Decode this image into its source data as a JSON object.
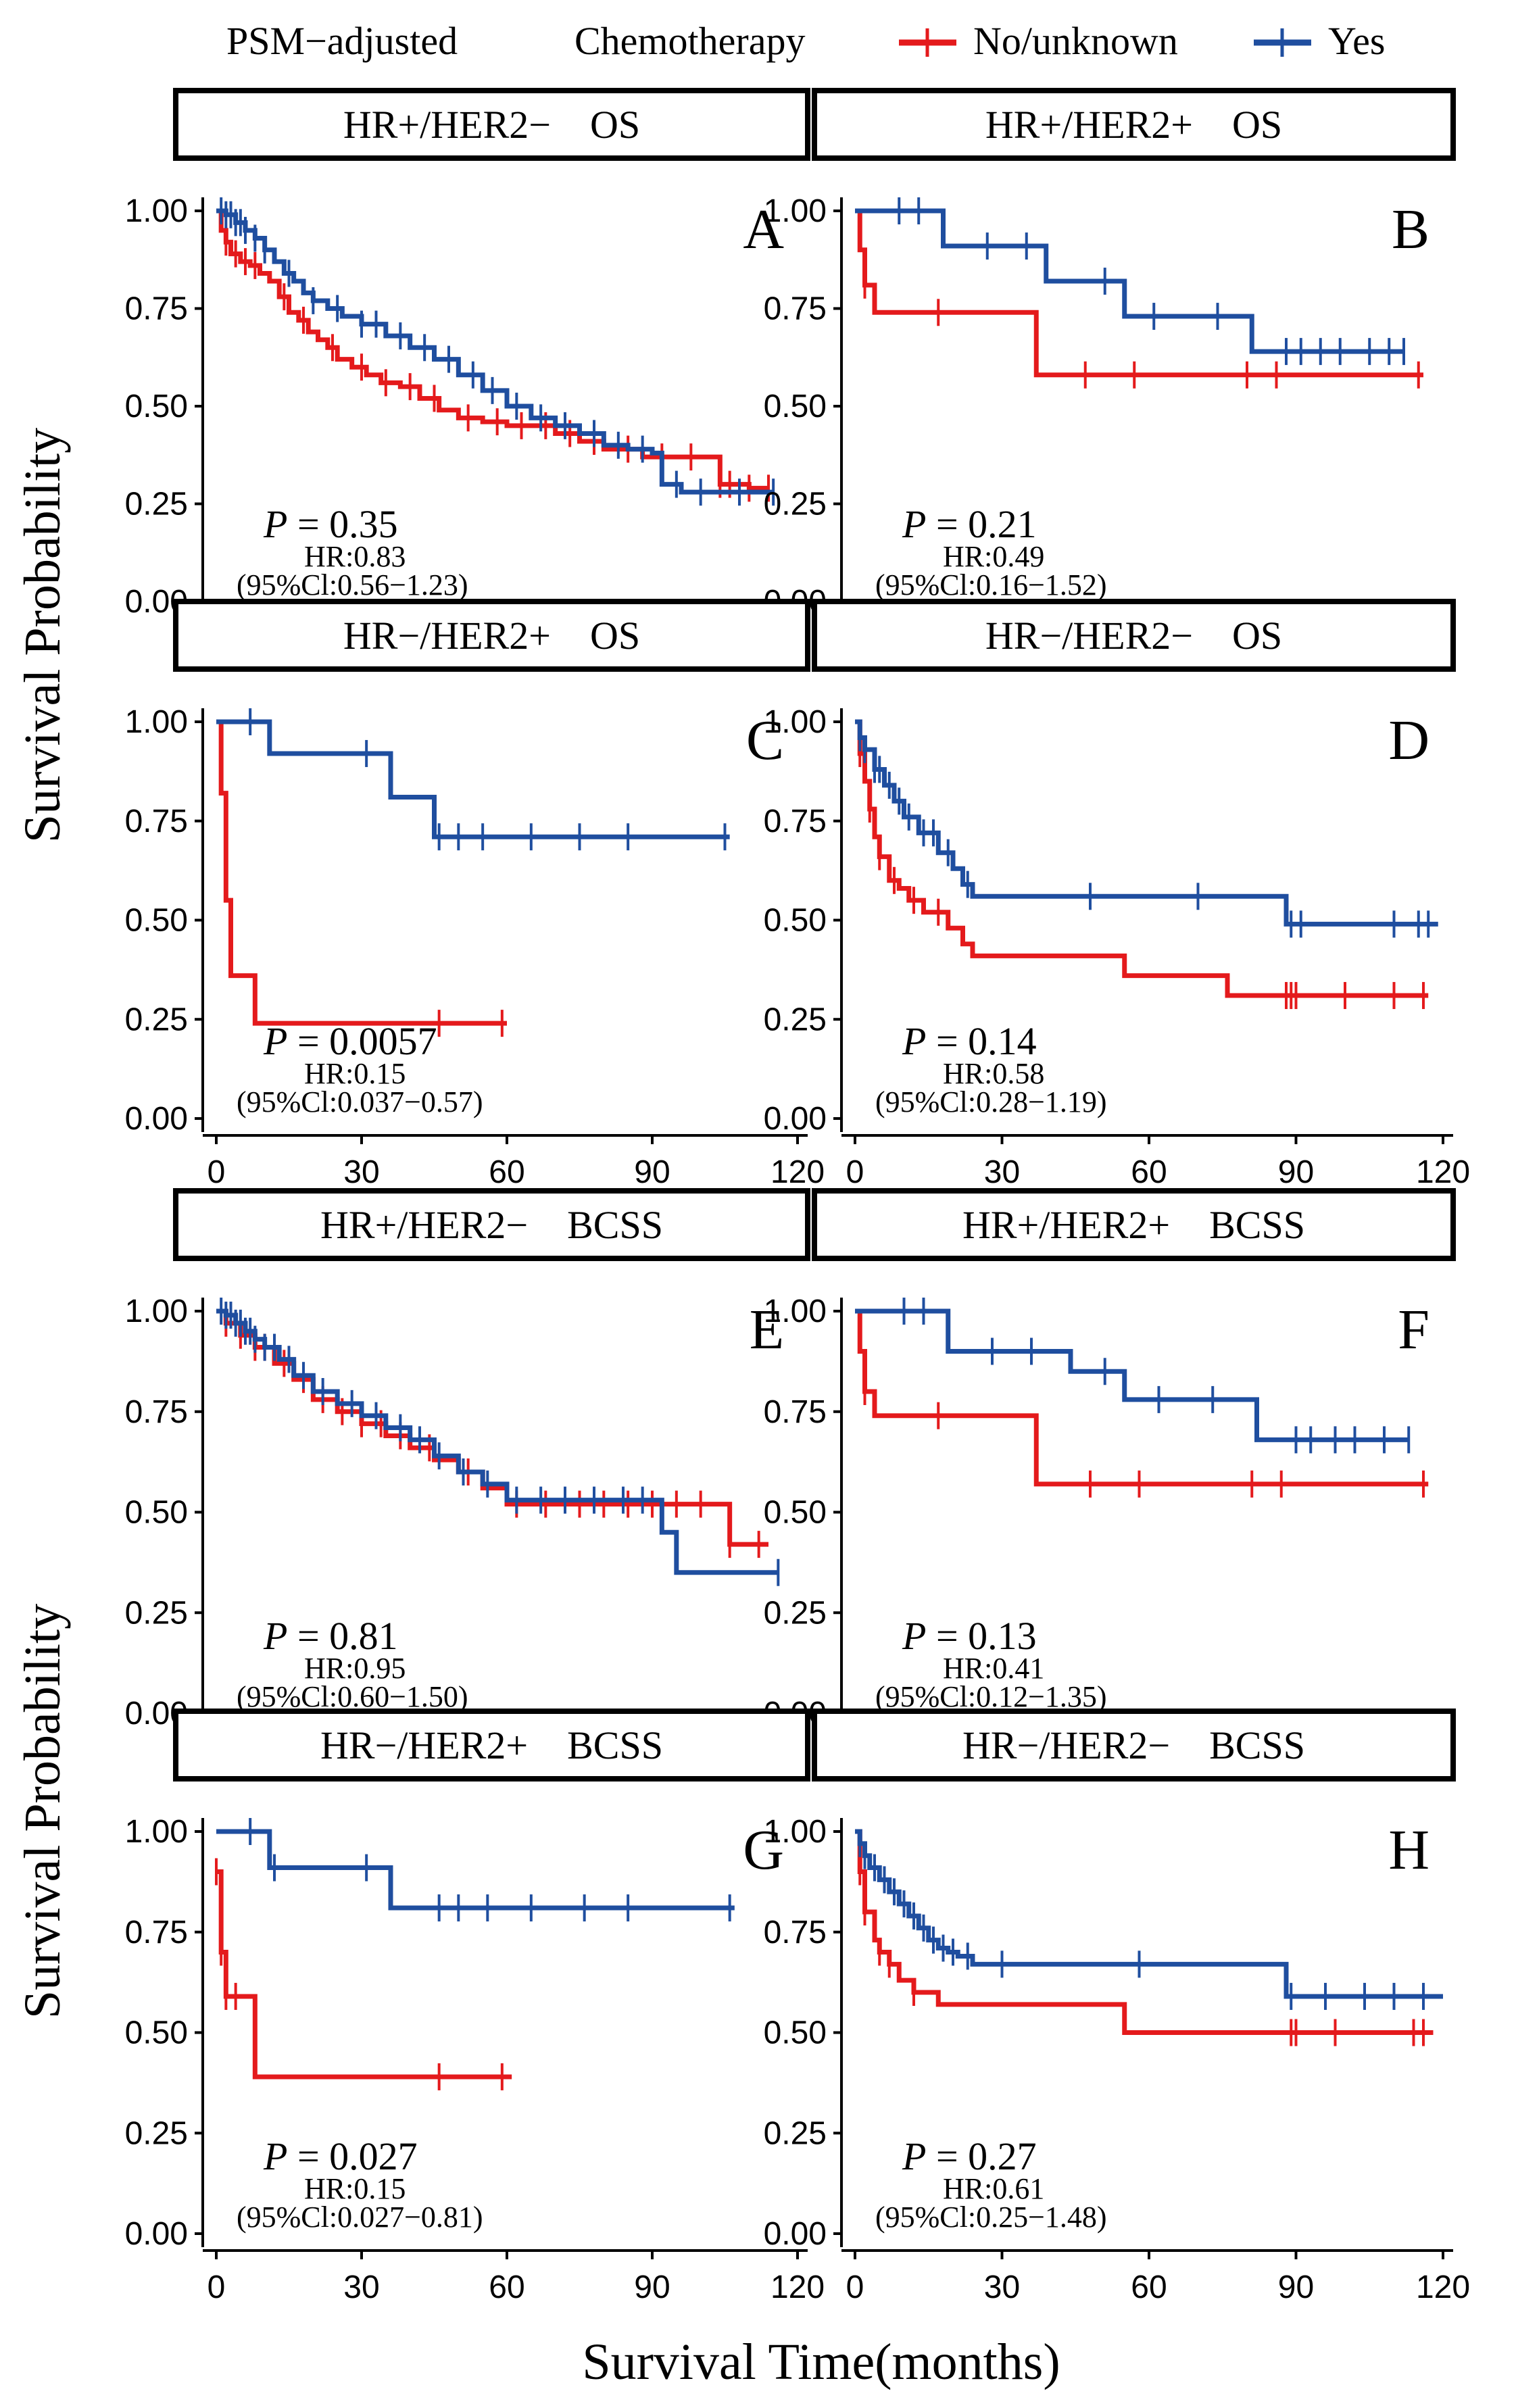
{
  "legend": {
    "title_prefix": "PSM−adjusted",
    "title": "Chemotherapy",
    "entries": [
      {
        "key": "no",
        "label": "No/unknown",
        "color": "#e41a1c"
      },
      {
        "key": "yes",
        "label": "Yes",
        "color": "#1f4e9f"
      }
    ]
  },
  "axes": {
    "ylabel": "Survival Probability",
    "xlabel": "Survival Time(months)",
    "xlim": [
      0,
      120
    ],
    "ylim": [
      0,
      1
    ],
    "x_ticks": [
      "0",
      "30",
      "60",
      "90",
      "120"
    ],
    "y_ticks": [
      "0.00",
      "0.25",
      "0.50",
      "0.75",
      "1.00"
    ]
  },
  "chart_data": [
    {
      "type": "line",
      "panel": "A",
      "title": "HR+/HER2−    OS",
      "p_value": "0.35",
      "hr": "HR:0.83",
      "ci": "(95%Cl:0.56−1.23)",
      "series": [
        {
          "name": "No/unknown",
          "color": "#e41a1c",
          "x": [
            0,
            1,
            2,
            3,
            5,
            7,
            9,
            11,
            13,
            15,
            17,
            19,
            21,
            23,
            25,
            28,
            31,
            34,
            38,
            42,
            46,
            50,
            55,
            60,
            70,
            75,
            80,
            88,
            95,
            100,
            104,
            106,
            110,
            114
          ],
          "y": [
            1.0,
            0.95,
            0.92,
            0.89,
            0.87,
            0.86,
            0.84,
            0.82,
            0.78,
            0.74,
            0.72,
            0.69,
            0.67,
            0.65,
            0.62,
            0.6,
            0.58,
            0.56,
            0.55,
            0.52,
            0.49,
            0.47,
            0.46,
            0.45,
            0.43,
            0.41,
            0.39,
            0.37,
            0.37,
            0.37,
            0.3,
            0.3,
            0.29,
            0.29
          ],
          "censor": [
            2,
            4,
            6,
            8,
            14,
            18,
            24,
            30,
            35,
            40,
            45,
            52,
            58,
            63,
            68,
            73,
            78,
            85,
            92,
            98,
            104,
            106,
            110,
            114
          ]
        },
        {
          "name": "Yes",
          "color": "#1f4e9f",
          "x": [
            0,
            2,
            4,
            6,
            8,
            10,
            12,
            14,
            16,
            18,
            20,
            23,
            26,
            30,
            35,
            40,
            45,
            50,
            55,
            60,
            65,
            70,
            75,
            80,
            85,
            90,
            92,
            96,
            100,
            105,
            110,
            115
          ],
          "y": [
            1.0,
            0.99,
            0.97,
            0.95,
            0.93,
            0.9,
            0.87,
            0.84,
            0.82,
            0.79,
            0.77,
            0.75,
            0.73,
            0.71,
            0.68,
            0.65,
            0.62,
            0.58,
            0.54,
            0.5,
            0.47,
            0.45,
            0.43,
            0.4,
            0.39,
            0.38,
            0.3,
            0.28,
            0.28,
            0.28,
            0.28,
            0.28
          ],
          "censor": [
            1,
            2,
            3,
            4,
            5,
            6,
            8,
            10,
            15,
            20,
            25,
            30,
            33,
            38,
            43,
            48,
            53,
            57,
            62,
            67,
            72,
            78,
            83,
            88,
            95,
            100,
            108,
            115
          ]
        }
      ]
    },
    {
      "type": "line",
      "panel": "B",
      "title": "HR+/HER2+    OS",
      "p_value": "0.21",
      "hr": "HR:0.49",
      "ci": "(95%Cl:0.16−1.52)",
      "series": [
        {
          "name": "No/unknown",
          "color": "#e41a1c",
          "x": [
            0,
            1,
            2,
            4,
            33,
            37,
            116
          ],
          "y": [
            1.0,
            0.9,
            0.81,
            0.74,
            0.74,
            0.58,
            0.58
          ],
          "censor": [
            2,
            17,
            47,
            57,
            80,
            86,
            115
          ]
        },
        {
          "name": "Yes",
          "color": "#1f4e9f",
          "x": [
            0,
            18,
            38,
            39,
            55,
            81,
            112
          ],
          "y": [
            1.0,
            0.91,
            0.91,
            0.82,
            0.73,
            0.64,
            0.64
          ],
          "censor": [
            9,
            13,
            27,
            35,
            51,
            61,
            74,
            88,
            91,
            95,
            99,
            105,
            109,
            112
          ]
        }
      ]
    },
    {
      "type": "line",
      "panel": "C",
      "title": "HR−/HER2+    OS",
      "p_value": "0.0057",
      "hr": "HR:0.15",
      "ci": "(95%Cl:0.037−0.57)",
      "series": [
        {
          "name": "No/unknown",
          "color": "#e41a1c",
          "x": [
            0,
            1,
            2,
            3,
            8,
            60
          ],
          "y": [
            1.0,
            0.82,
            0.55,
            0.36,
            0.24,
            0.24
          ],
          "censor": [
            46,
            59
          ]
        },
        {
          "name": "Yes",
          "color": "#1f4e9f",
          "x": [
            0,
            11,
            36,
            45,
            106
          ],
          "y": [
            1.0,
            0.92,
            0.81,
            0.71,
            0.71
          ],
          "censor": [
            7,
            31,
            46,
            50,
            55,
            65,
            75,
            85,
            105
          ]
        }
      ]
    },
    {
      "type": "line",
      "panel": "D",
      "title": "HR−/HER2−    OS",
      "p_value": "0.14",
      "hr": "HR:0.58",
      "ci": "(95%Cl:0.28−1.19)",
      "series": [
        {
          "name": "No/unknown",
          "color": "#e41a1c",
          "x": [
            0,
            1,
            2,
            3,
            4,
            5,
            7,
            9,
            11,
            14,
            19,
            22,
            24,
            55,
            76,
            117
          ],
          "y": [
            1.0,
            0.92,
            0.85,
            0.78,
            0.71,
            0.66,
            0.6,
            0.58,
            0.55,
            0.52,
            0.48,
            0.44,
            0.41,
            0.36,
            0.31,
            0.31
          ],
          "censor": [
            1,
            3,
            5,
            8,
            12,
            17,
            88,
            89,
            90,
            100,
            110,
            116
          ]
        },
        {
          "name": "Yes",
          "color": "#1f4e9f",
          "x": [
            0,
            1,
            2,
            4,
            6,
            8,
            10,
            13,
            17,
            20,
            22,
            24,
            87,
            88,
            119
          ],
          "y": [
            1.0,
            0.96,
            0.93,
            0.88,
            0.84,
            0.8,
            0.76,
            0.72,
            0.67,
            0.63,
            0.59,
            0.56,
            0.56,
            0.49,
            0.49
          ],
          "censor": [
            1,
            2,
            4,
            5,
            7,
            9,
            11,
            14,
            16,
            19,
            23,
            48,
            70,
            89,
            91,
            110,
            115,
            117
          ]
        }
      ]
    },
    {
      "type": "line",
      "panel": "E",
      "title": "HR+/HER2−    BCSS",
      "p_value": "0.81",
      "hr": "HR:0.95",
      "ci": "(95%Cl:0.60−1.50)",
      "series": [
        {
          "name": "No/unknown",
          "color": "#e41a1c",
          "x": [
            0,
            2,
            5,
            8,
            12,
            16,
            20,
            25,
            30,
            35,
            40,
            45,
            50,
            55,
            60,
            106,
            108,
            114
          ],
          "y": [
            1.0,
            0.97,
            0.94,
            0.91,
            0.87,
            0.83,
            0.78,
            0.75,
            0.72,
            0.69,
            0.66,
            0.63,
            0.6,
            0.56,
            0.52,
            0.42,
            0.42,
            0.42
          ],
          "censor": [
            2,
            5,
            8,
            10,
            14,
            18,
            22,
            26,
            30,
            34,
            38,
            44,
            52,
            62,
            68,
            75,
            80,
            85,
            90,
            95,
            100,
            106,
            112
          ]
        },
        {
          "name": "Yes",
          "color": "#1f4e9f",
          "x": [
            0,
            2,
            4,
            6,
            8,
            10,
            13,
            16,
            20,
            25,
            30,
            35,
            40,
            45,
            50,
            55,
            60,
            92,
            95,
            116
          ],
          "y": [
            1.0,
            0.99,
            0.97,
            0.95,
            0.93,
            0.91,
            0.88,
            0.84,
            0.8,
            0.77,
            0.74,
            0.71,
            0.68,
            0.64,
            0.6,
            0.57,
            0.53,
            0.45,
            0.35,
            0.35
          ],
          "censor": [
            1,
            2,
            3,
            4,
            5,
            6,
            7,
            8,
            10,
            12,
            15,
            18,
            22,
            28,
            33,
            38,
            42,
            46,
            51,
            56,
            62,
            67,
            72,
            78,
            84,
            88,
            116
          ]
        }
      ]
    },
    {
      "type": "line",
      "panel": "F",
      "title": "HR+/HER2+    BCSS",
      "p_value": "0.13",
      "hr": "HR:0.41",
      "ci": "(95%Cl:0.12−1.35)",
      "series": [
        {
          "name": "No/unknown",
          "color": "#e41a1c",
          "x": [
            0,
            1,
            2,
            4,
            33,
            37,
            117
          ],
          "y": [
            1.0,
            0.9,
            0.8,
            0.74,
            0.74,
            0.57,
            0.57
          ],
          "censor": [
            2,
            17,
            48,
            58,
            81,
            87,
            116
          ]
        },
        {
          "name": "Yes",
          "color": "#1f4e9f",
          "x": [
            0,
            19,
            38,
            44,
            55,
            82,
            113
          ],
          "y": [
            1.0,
            0.9,
            0.9,
            0.85,
            0.78,
            0.68,
            0.68
          ],
          "censor": [
            10,
            14,
            28,
            36,
            51,
            62,
            73,
            90,
            93,
            98,
            102,
            108,
            113
          ]
        }
      ]
    },
    {
      "type": "line",
      "panel": "G",
      "title": "HR−/HER2+    BCSS",
      "p_value": "0.027",
      "hr": "HR:0.15",
      "ci": "(95%Cl:0.027−0.81)",
      "series": [
        {
          "name": "No/unknown",
          "color": "#e41a1c",
          "x": [
            0,
            1,
            2,
            8,
            61
          ],
          "y": [
            0.9,
            0.7,
            0.59,
            0.39,
            0.39
          ],
          "censor": [
            0,
            1,
            2,
            4,
            46,
            59
          ]
        },
        {
          "name": "Yes",
          "color": "#1f4e9f",
          "x": [
            0,
            11,
            36,
            107
          ],
          "y": [
            1.0,
            0.91,
            0.81,
            0.81
          ],
          "censor": [
            7,
            12,
            31,
            46,
            50,
            56,
            65,
            76,
            85,
            106
          ]
        }
      ]
    },
    {
      "type": "line",
      "panel": "H",
      "title": "HR−/HER2−    BCSS",
      "p_value": "0.27",
      "hr": "HR:0.61",
      "ci": "(95%Cl:0.25−1.48)",
      "series": [
        {
          "name": "No/unknown",
          "color": "#e41a1c",
          "x": [
            0,
            1,
            2,
            4,
            5,
            7,
            9,
            12,
            17,
            20,
            55,
            118
          ],
          "y": [
            1.0,
            0.9,
            0.8,
            0.73,
            0.7,
            0.67,
            0.63,
            0.6,
            0.57,
            0.57,
            0.5,
            0.5
          ],
          "censor": [
            1,
            2,
            5,
            7,
            12,
            89,
            90,
            98,
            114,
            116
          ]
        },
        {
          "name": "Yes",
          "color": "#1f4e9f",
          "x": [
            0,
            1,
            2,
            3,
            5,
            7,
            9,
            11,
            13,
            15,
            17,
            19,
            21,
            24,
            87,
            88,
            120
          ],
          "y": [
            1.0,
            0.97,
            0.94,
            0.91,
            0.88,
            0.85,
            0.82,
            0.79,
            0.76,
            0.73,
            0.71,
            0.7,
            0.69,
            0.67,
            0.67,
            0.59,
            0.59
          ],
          "censor": [
            1,
            2,
            4,
            6,
            8,
            10,
            12,
            14,
            16,
            18,
            20,
            23,
            30,
            58,
            89,
            96,
            104,
            110,
            116
          ]
        }
      ]
    }
  ]
}
